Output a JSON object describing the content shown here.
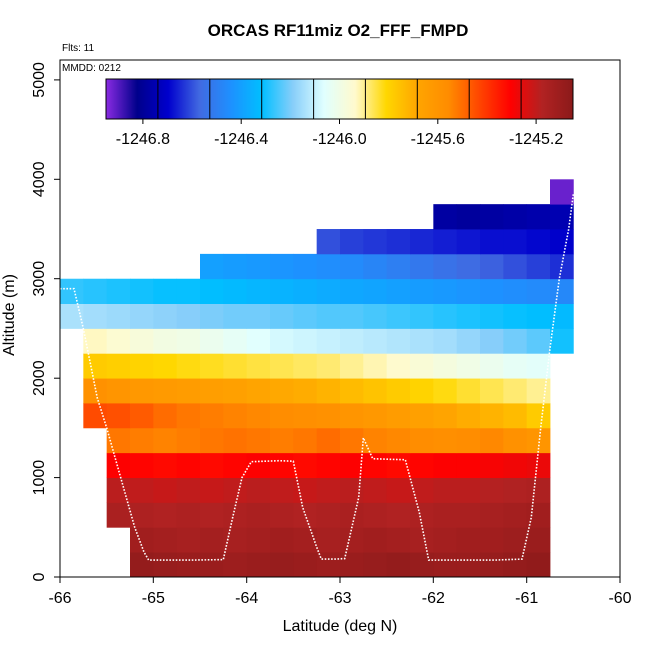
{
  "chart_data": {
    "type": "heatmap",
    "title": "ORCAS RF11miz O2_FFF_FMPD",
    "xlabel": "Latitude (deg N)",
    "ylabel": "Altitude (m)",
    "xlim": [
      -66,
      -60
    ],
    "ylim": [
      0,
      5200
    ],
    "x_ticks": [
      -66,
      -65,
      -64,
      -63,
      -62,
      -61,
      -60
    ],
    "x_tick_labels": [
      "-66",
      "-65",
      "-64",
      "-63",
      "-62",
      "-61",
      "-60"
    ],
    "y_ticks": [
      0,
      1000,
      2000,
      3000,
      4000,
      5000
    ],
    "y_tick_labels": [
      "0",
      "1000",
      "2000",
      "3000",
      "4000",
      "5000"
    ],
    "flights_text": "Flts: 11",
    "mmdd_text": "MMDD: 0212",
    "colorbar": {
      "min": -1246.95,
      "max": -1245.05,
      "ticks": [
        -1246.8,
        -1246.4,
        -1246.0,
        -1245.6,
        -1245.2
      ],
      "tick_labels": [
        "-1246.8",
        "-1246.4",
        "-1246.0",
        "-1245.6",
        "-1245.2"
      ],
      "stops": [
        "#8a2be2",
        "#00008b",
        "#0000cd",
        "#4169e1",
        "#1e90ff",
        "#00bfff",
        "#87cefa",
        "#e0ffff",
        "#fffacd",
        "#ffd700",
        "#ffa500",
        "#ff8c00",
        "#ff4500",
        "#ff0000",
        "#b22222",
        "#8b1a1a"
      ]
    },
    "grid": {
      "x_edges": [
        -65.75,
        -65.5,
        -65.25,
        -65.0,
        -64.75,
        -64.5,
        -64.25,
        -64.0,
        -63.75,
        -63.5,
        -63.25,
        -63.0,
        -62.75,
        -62.5,
        -62.25,
        -62.0,
        -61.75,
        -61.5,
        -61.25,
        -61.0,
        -60.75,
        -60.5
      ],
      "rows": [
        {
          "alt0": 0,
          "alt1": 250,
          "x0": -65.25,
          "x1": -60.75,
          "values": [
            -1245.08,
            -1245.09,
            -1245.1,
            -1245.1,
            -1245.11,
            -1245.1,
            -1245.09,
            -1245.1,
            -1245.11,
            -1245.1,
            -1245.09,
            -1245.08,
            -1245.09,
            -1245.1,
            -1245.1,
            -1245.09,
            -1245.08,
            -1245.07
          ]
        },
        {
          "alt0": 250,
          "alt1": 500,
          "x0": -65.25,
          "x1": -60.75,
          "values": [
            -1245.12,
            -1245.13,
            -1245.14,
            -1245.13,
            -1245.14,
            -1245.13,
            -1245.12,
            -1245.13,
            -1245.14,
            -1245.13,
            -1245.12,
            -1245.13,
            -1245.14,
            -1245.13,
            -1245.12,
            -1245.12,
            -1245.11,
            -1245.1
          ]
        },
        {
          "alt0": 500,
          "alt1": 750,
          "x0": -65.5,
          "x1": -60.75,
          "values": [
            -1245.15,
            -1245.16,
            -1245.17,
            -1245.16,
            -1245.17,
            -1245.16,
            -1245.15,
            -1245.16,
            -1245.17,
            -1245.16,
            -1245.15,
            -1245.16,
            -1245.17,
            -1245.16,
            -1245.15,
            -1245.15,
            -1245.14,
            -1245.13,
            -1245.12
          ]
        },
        {
          "alt0": 750,
          "alt1": 1000,
          "x0": -65.5,
          "x1": -60.75,
          "values": [
            -1245.19,
            -1245.2,
            -1245.21,
            -1245.2,
            -1245.21,
            -1245.2,
            -1245.19,
            -1245.2,
            -1245.21,
            -1245.2,
            -1245.19,
            -1245.2,
            -1245.21,
            -1245.2,
            -1245.19,
            -1245.19,
            -1245.18,
            -1245.17,
            -1245.16
          ]
        },
        {
          "alt0": 1000,
          "alt1": 1250,
          "x0": -65.5,
          "x1": -60.75,
          "values": [
            -1245.3,
            -1245.31,
            -1245.32,
            -1245.31,
            -1245.32,
            -1245.31,
            -1245.3,
            -1245.31,
            -1245.32,
            -1245.31,
            -1245.3,
            -1245.31,
            -1245.32,
            -1245.31,
            -1245.3,
            -1245.3,
            -1245.29,
            -1245.28,
            -1245.27
          ]
        },
        {
          "alt0": 1250,
          "alt1": 1500,
          "x0": -65.5,
          "x1": -60.75,
          "values": [
            -1245.52,
            -1245.53,
            -1245.54,
            -1245.53,
            -1245.52,
            -1245.51,
            -1245.52,
            -1245.53,
            -1245.52,
            -1245.5,
            -1245.52,
            -1245.54,
            -1245.55,
            -1245.56,
            -1245.57,
            -1245.56,
            -1245.55,
            -1245.58,
            -1245.6
          ]
        },
        {
          "alt0": 1500,
          "alt1": 1750,
          "x0": -65.75,
          "x1": -60.75,
          "values": [
            -1245.44,
            -1245.45,
            -1245.47,
            -1245.5,
            -1245.52,
            -1245.53,
            -1245.54,
            -1245.55,
            -1245.56,
            -1245.57,
            -1245.58,
            -1245.6,
            -1245.62,
            -1245.64,
            -1245.66,
            -1245.68,
            -1245.7,
            -1245.72,
            -1245.74,
            -1245.78
          ]
        },
        {
          "alt0": 1750,
          "alt1": 2000,
          "x0": -65.75,
          "x1": -60.75,
          "values": [
            -1245.58,
            -1245.6,
            -1245.62,
            -1245.63,
            -1245.64,
            -1245.65,
            -1245.66,
            -1245.68,
            -1245.69,
            -1245.7,
            -1245.72,
            -1245.74,
            -1245.76,
            -1245.78,
            -1245.8,
            -1245.82,
            -1245.84,
            -1245.86,
            -1245.88,
            -1245.9
          ]
        },
        {
          "alt0": 2000,
          "alt1": 2250,
          "x0": -65.75,
          "x1": -60.75,
          "values": [
            -1245.78,
            -1245.79,
            -1245.8,
            -1245.81,
            -1245.82,
            -1245.83,
            -1245.84,
            -1245.85,
            -1245.86,
            -1245.87,
            -1245.88,
            -1245.9,
            -1245.92,
            -1245.94,
            -1245.96,
            -1245.98,
            -1246.0,
            -1246.02,
            -1246.04,
            -1246.05
          ]
        },
        {
          "alt0": 2250,
          "alt1": 2500,
          "x0": -65.75,
          "x1": -60.5,
          "values": [
            -1245.93,
            -1245.95,
            -1245.97,
            -1245.99,
            -1246.0,
            -1246.02,
            -1246.04,
            -1246.06,
            -1246.08,
            -1246.09,
            -1246.1,
            -1246.11,
            -1246.12,
            -1246.13,
            -1246.14,
            -1246.15,
            -1246.17,
            -1246.19,
            -1246.21,
            -1246.23,
            -1246.3
          ]
        },
        {
          "alt0": 2500,
          "alt1": 2750,
          "x0": -66.0,
          "x1": -60.5,
          "values": [
            -1246.14,
            -1246.15,
            -1246.16,
            -1246.17,
            -1246.18,
            -1246.19,
            -1246.2,
            -1246.21,
            -1246.21,
            -1246.22,
            -1246.23,
            -1246.24,
            -1246.24,
            -1246.25,
            -1246.26,
            -1246.27,
            -1246.28,
            -1246.29,
            -1246.3,
            -1246.31,
            -1246.32,
            -1246.33
          ]
        },
        {
          "alt0": 2750,
          "alt1": 3000,
          "x0": -66.0,
          "x1": -60.5,
          "values": [
            -1246.27,
            -1246.28,
            -1246.29,
            -1246.3,
            -1246.31,
            -1246.31,
            -1246.32,
            -1246.33,
            -1246.34,
            -1246.35,
            -1246.36,
            -1246.37,
            -1246.38,
            -1246.39,
            -1246.4,
            -1246.41,
            -1246.42,
            -1246.43,
            -1246.44,
            -1246.45,
            -1246.46,
            -1246.47
          ]
        },
        {
          "alt0": 3000,
          "alt1": 3250,
          "x0": -64.5,
          "x1": -60.5,
          "values": [
            -1246.4,
            -1246.41,
            -1246.42,
            -1246.43,
            -1246.44,
            -1246.45,
            -1246.46,
            -1246.48,
            -1246.5,
            -1246.52,
            -1246.54,
            -1246.56,
            -1246.58,
            -1246.6,
            -1246.62,
            -1246.64
          ]
        },
        {
          "alt0": 3250,
          "alt1": 3500,
          "x0": -63.25,
          "x1": -60.5,
          "values": [
            -1246.6,
            -1246.62,
            -1246.63,
            -1246.64,
            -1246.65,
            -1246.66,
            -1246.67,
            -1246.68,
            -1246.68,
            -1246.69,
            -1246.7
          ]
        },
        {
          "alt0": 3500,
          "alt1": 3750,
          "x0": -62.0,
          "x1": -60.5,
          "values": [
            -1246.78,
            -1246.79,
            -1246.78,
            -1246.77,
            -1246.76,
            -1246.75
          ]
        },
        {
          "alt0": 3750,
          "alt1": 4000,
          "x0": -60.75,
          "x1": -60.5,
          "values": [
            -1246.92
          ]
        }
      ]
    },
    "flight_track": {
      "lat": [
        -66.0,
        -65.85,
        -65.75,
        -65.6,
        -65.5,
        -65.35,
        -65.2,
        -65.1,
        -65.05,
        -64.6,
        -64.25,
        -64.15,
        -64.05,
        -63.95,
        -63.65,
        -63.5,
        -63.4,
        -63.25,
        -63.2,
        -63.05,
        -62.95,
        -62.8,
        -62.75,
        -62.65,
        -62.5,
        -62.3,
        -62.15,
        -62.05,
        -61.85,
        -61.6,
        -61.35,
        -61.05,
        -60.95,
        -60.85,
        -60.75,
        -60.65,
        -60.55,
        -60.5
      ],
      "alt": [
        2900,
        2900,
        2500,
        1800,
        1500,
        1000,
        500,
        250,
        170,
        170,
        175,
        600,
        1000,
        1160,
        1170,
        1165,
        700,
        300,
        180,
        180,
        185,
        800,
        1400,
        1190,
        1185,
        1180,
        650,
        170,
        170,
        170,
        170,
        180,
        600,
        1500,
        2300,
        3000,
        3500,
        3850
      ]
    }
  }
}
